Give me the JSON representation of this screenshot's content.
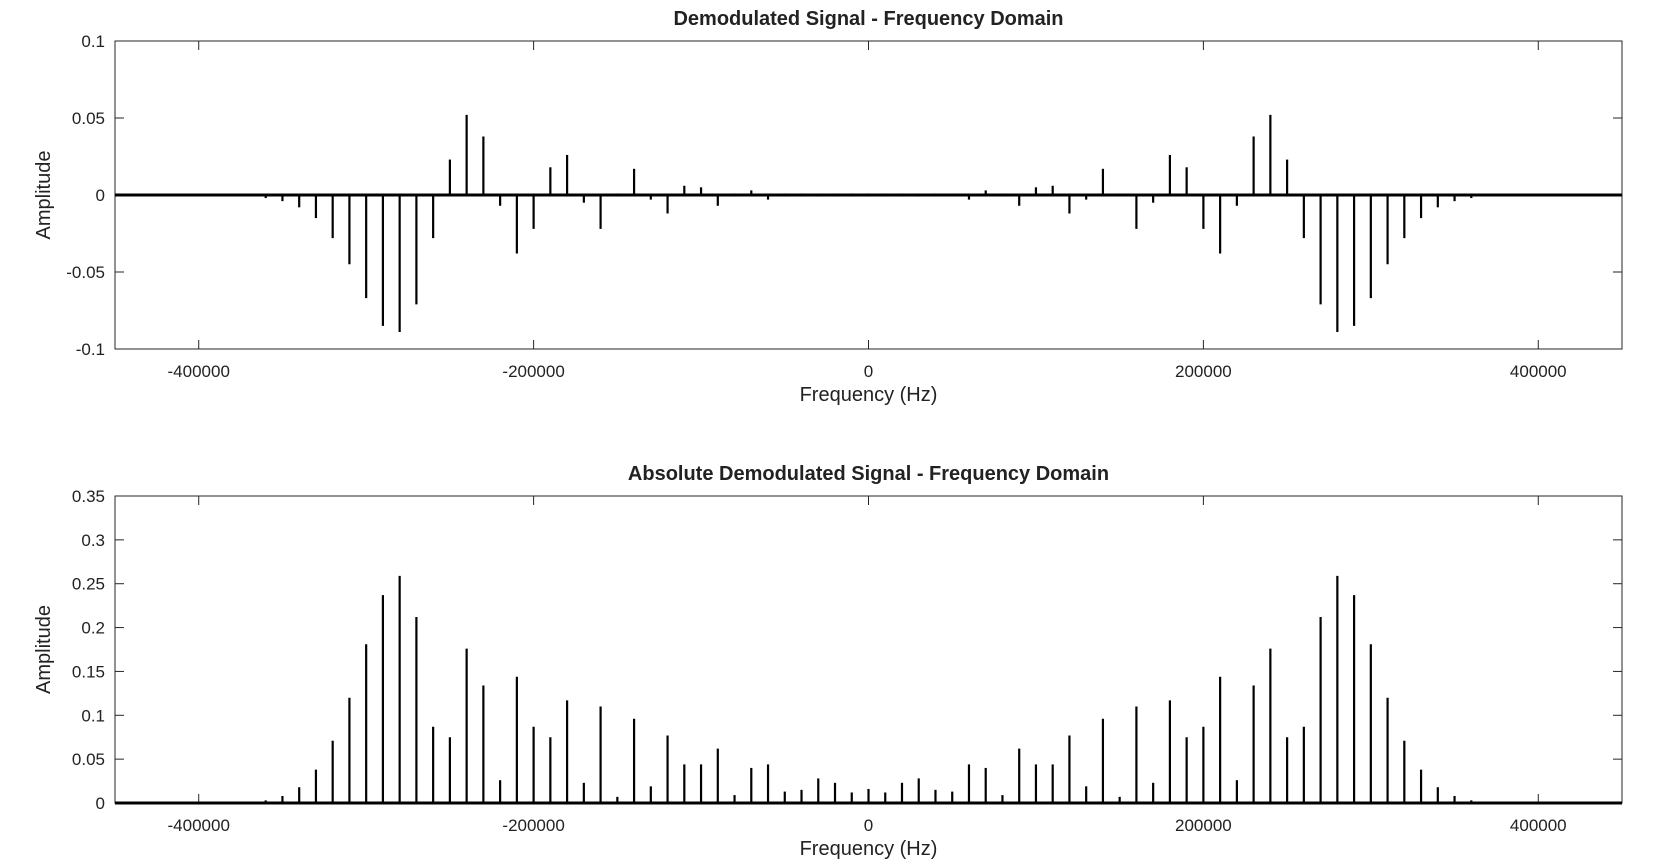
{
  "chart_data": [
    {
      "type": "stem",
      "title": "Demodulated Signal - Frequency Domain",
      "xlabel": "Frequency (Hz)",
      "ylabel": "Amplitude",
      "xlim": [
        -450000,
        450000
      ],
      "ylim": [
        -0.1,
        0.1
      ],
      "xticks": [
        -400000,
        -200000,
        0,
        200000,
        400000
      ],
      "xtick_labels": [
        "-400000",
        "-200000",
        "0",
        "200000",
        "400000"
      ],
      "yticks": [
        -0.1,
        -0.05,
        0,
        0.05,
        0.1
      ],
      "ytick_labels": [
        "-0.1",
        "-0.05",
        "0",
        "0.05",
        "0.1"
      ],
      "grid": false,
      "series": [
        {
          "name": "demodulated",
          "color": "#000000",
          "points": [
            [
              -360000,
              -0.002
            ],
            [
              -350000,
              -0.004
            ],
            [
              -340000,
              -0.008
            ],
            [
              -330000,
              -0.015
            ],
            [
              -320000,
              -0.028
            ],
            [
              -310000,
              -0.045
            ],
            [
              -300000,
              -0.067
            ],
            [
              -290000,
              -0.085
            ],
            [
              -280000,
              -0.089
            ],
            [
              -270000,
              -0.071
            ],
            [
              -260000,
              -0.028
            ],
            [
              -250000,
              0.023
            ],
            [
              -240000,
              0.052
            ],
            [
              -230000,
              0.038
            ],
            [
              -220000,
              -0.007
            ],
            [
              -210000,
              -0.038
            ],
            [
              -200000,
              -0.022
            ],
            [
              -190000,
              0.018
            ],
            [
              -180000,
              0.026
            ],
            [
              -170000,
              -0.005
            ],
            [
              -160000,
              -0.022
            ],
            [
              -150000,
              0.001
            ],
            [
              -140000,
              0.017
            ],
            [
              -130000,
              -0.003
            ],
            [
              -120000,
              -0.012
            ],
            [
              -110000,
              0.006
            ],
            [
              -100000,
              0.005
            ],
            [
              -90000,
              -0.007
            ],
            [
              -80000,
              0.001
            ],
            [
              -70000,
              0.003
            ],
            [
              -60000,
              -0.003
            ],
            [
              -50000,
              0.001
            ],
            [
              -40000,
              0.001
            ],
            [
              -30000,
              -0.001
            ],
            [
              -20000,
              0.001
            ],
            [
              -10000,
              0.001
            ],
            [
              0,
              0.001
            ],
            [
              10000,
              0.001
            ],
            [
              20000,
              0.001
            ],
            [
              30000,
              -0.001
            ],
            [
              40000,
              0.001
            ],
            [
              50000,
              0.001
            ],
            [
              60000,
              -0.003
            ],
            [
              70000,
              0.003
            ],
            [
              80000,
              0.001
            ],
            [
              90000,
              -0.007
            ],
            [
              100000,
              0.005
            ],
            [
              110000,
              0.006
            ],
            [
              120000,
              -0.012
            ],
            [
              130000,
              -0.003
            ],
            [
              140000,
              0.017
            ],
            [
              150000,
              0.001
            ],
            [
              160000,
              -0.022
            ],
            [
              170000,
              -0.005
            ],
            [
              180000,
              0.026
            ],
            [
              190000,
              0.018
            ],
            [
              200000,
              -0.022
            ],
            [
              210000,
              -0.038
            ],
            [
              220000,
              -0.007
            ],
            [
              230000,
              0.038
            ],
            [
              240000,
              0.052
            ],
            [
              250000,
              0.023
            ],
            [
              260000,
              -0.028
            ],
            [
              270000,
              -0.071
            ],
            [
              280000,
              -0.089
            ],
            [
              290000,
              -0.085
            ],
            [
              300000,
              -0.067
            ],
            [
              310000,
              -0.045
            ],
            [
              320000,
              -0.028
            ],
            [
              330000,
              -0.015
            ],
            [
              340000,
              -0.008
            ],
            [
              350000,
              -0.004
            ],
            [
              360000,
              -0.002
            ]
          ]
        }
      ]
    },
    {
      "type": "stem",
      "title": "Absolute Demodulated Signal - Frequency Domain",
      "xlabel": "Frequency (Hz)",
      "ylabel": "Amplitude",
      "xlim": [
        -450000,
        450000
      ],
      "ylim": [
        0,
        0.35
      ],
      "xticks": [
        -400000,
        -200000,
        0,
        200000,
        400000
      ],
      "xtick_labels": [
        "-400000",
        "-200000",
        "0",
        "200000",
        "400000"
      ],
      "yticks": [
        0,
        0.05,
        0.1,
        0.15,
        0.2,
        0.25,
        0.3,
        0.35
      ],
      "ytick_labels": [
        "0",
        "0.05",
        "0.1",
        "0.15",
        "0.2",
        "0.25",
        "0.3",
        "0.35"
      ],
      "grid": false,
      "series": [
        {
          "name": "absolute demodulated",
          "color": "#000000",
          "points": [
            [
              -360000,
              0.003
            ],
            [
              -350000,
              0.008
            ],
            [
              -340000,
              0.018
            ],
            [
              -330000,
              0.038
            ],
            [
              -320000,
              0.071
            ],
            [
              -310000,
              0.12
            ],
            [
              -300000,
              0.181
            ],
            [
              -290000,
              0.237
            ],
            [
              -280000,
              0.259
            ],
            [
              -270000,
              0.212
            ],
            [
              -260000,
              0.087
            ],
            [
              -250000,
              0.075
            ],
            [
              -240000,
              0.176
            ],
            [
              -230000,
              0.134
            ],
            [
              -220000,
              0.026
            ],
            [
              -210000,
              0.144
            ],
            [
              -200000,
              0.087
            ],
            [
              -190000,
              0.075
            ],
            [
              -180000,
              0.117
            ],
            [
              -170000,
              0.023
            ],
            [
              -160000,
              0.11
            ],
            [
              -150000,
              0.007
            ],
            [
              -140000,
              0.096
            ],
            [
              -130000,
              0.019
            ],
            [
              -120000,
              0.077
            ],
            [
              -110000,
              0.044
            ],
            [
              -100000,
              0.044
            ],
            [
              -90000,
              0.062
            ],
            [
              -80000,
              0.009
            ],
            [
              -70000,
              0.04
            ],
            [
              -60000,
              0.044
            ],
            [
              -50000,
              0.013
            ],
            [
              -40000,
              0.015
            ],
            [
              -30000,
              0.028
            ],
            [
              -20000,
              0.023
            ],
            [
              -10000,
              0.012
            ],
            [
              0,
              0.016
            ],
            [
              10000,
              0.012
            ],
            [
              20000,
              0.023
            ],
            [
              30000,
              0.028
            ],
            [
              40000,
              0.015
            ],
            [
              50000,
              0.013
            ],
            [
              60000,
              0.044
            ],
            [
              70000,
              0.04
            ],
            [
              80000,
              0.009
            ],
            [
              90000,
              0.062
            ],
            [
              100000,
              0.044
            ],
            [
              110000,
              0.044
            ],
            [
              120000,
              0.077
            ],
            [
              130000,
              0.019
            ],
            [
              140000,
              0.096
            ],
            [
              150000,
              0.007
            ],
            [
              160000,
              0.11
            ],
            [
              170000,
              0.023
            ],
            [
              180000,
              0.117
            ],
            [
              190000,
              0.075
            ],
            [
              200000,
              0.087
            ],
            [
              210000,
              0.144
            ],
            [
              220000,
              0.026
            ],
            [
              230000,
              0.134
            ],
            [
              240000,
              0.176
            ],
            [
              250000,
              0.075
            ],
            [
              260000,
              0.087
            ],
            [
              270000,
              0.212
            ],
            [
              280000,
              0.259
            ],
            [
              290000,
              0.237
            ],
            [
              300000,
              0.181
            ],
            [
              310000,
              0.12
            ],
            [
              320000,
              0.071
            ],
            [
              330000,
              0.038
            ],
            [
              340000,
              0.018
            ],
            [
              350000,
              0.008
            ],
            [
              360000,
              0.003
            ]
          ]
        }
      ]
    }
  ]
}
